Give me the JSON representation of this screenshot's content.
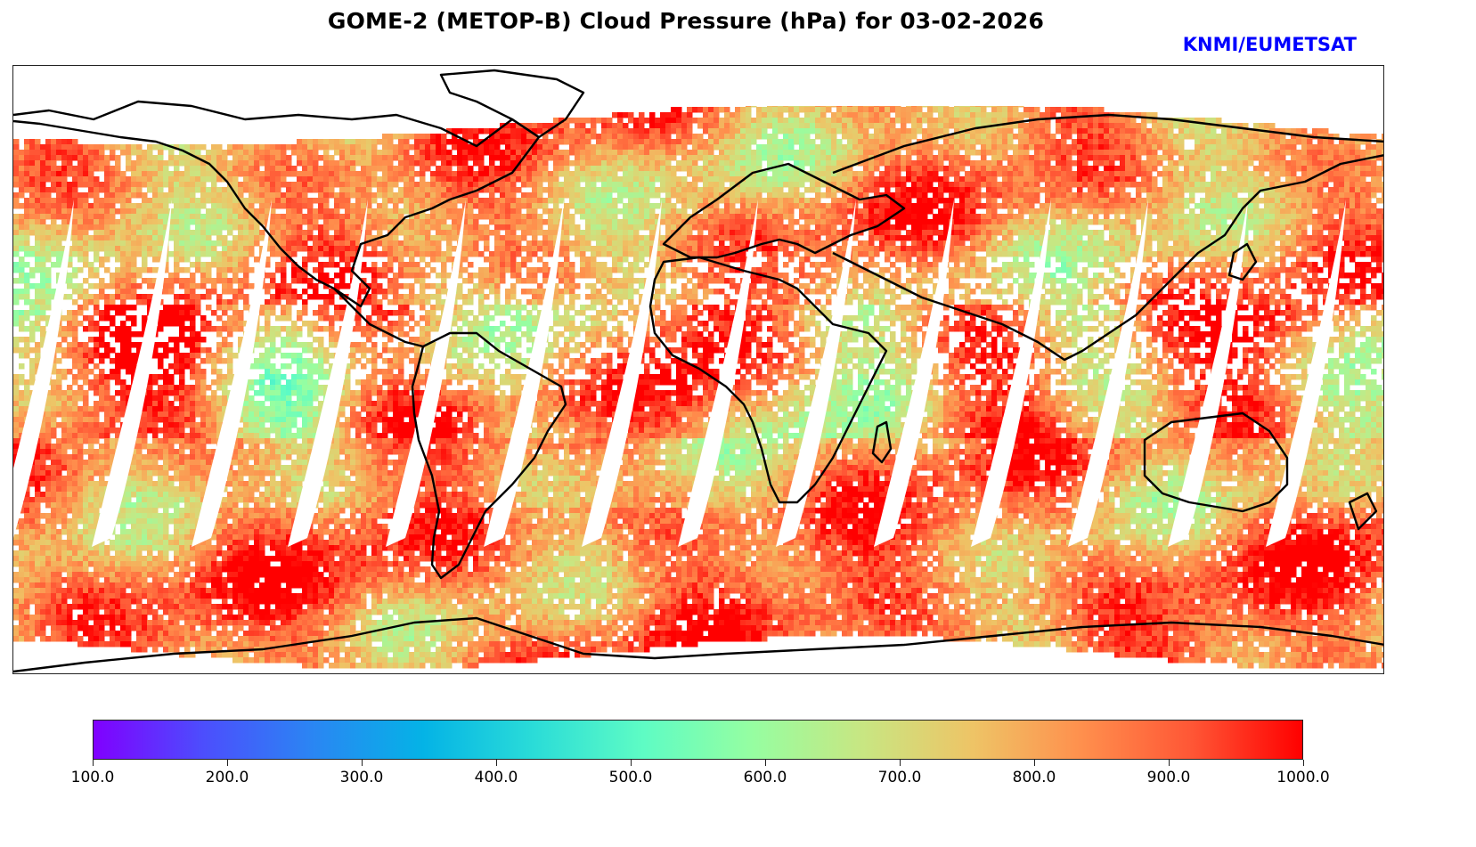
{
  "header": {
    "title": "GOME-2 (METOP-B) Cloud Pressure (hPa) for 03-02-2026",
    "credit": "KNMI/EUMETSAT",
    "credit_color": "#0000ff"
  },
  "map": {
    "projection": "Plate Carree (global)",
    "variable": "Cloud Pressure",
    "units": "hPa",
    "instrument": "GOME-2",
    "satellite": "METOP-B",
    "date": "03-02-2026",
    "missing_data_color": "#ffffff",
    "coastline_color": "#000000"
  },
  "colorbar": {
    "colormap": "rainbow",
    "min": 100.0,
    "max": 1000.0,
    "ticks": [
      "100.0",
      "200.0",
      "300.0",
      "400.0",
      "500.0",
      "600.0",
      "700.0",
      "800.0",
      "900.0",
      "1000.0"
    ],
    "tick_values": [
      100,
      200,
      300,
      400,
      500,
      600,
      700,
      800,
      900,
      1000
    ],
    "stops": [
      "#8000ff",
      "#4c4efd",
      "#2a86f3",
      "#04b3e6",
      "#2adcd8",
      "#5efcc4",
      "#96fea1",
      "#c8e682",
      "#eec466",
      "#ff8f4d",
      "#ff5635",
      "#ff0000"
    ]
  }
}
